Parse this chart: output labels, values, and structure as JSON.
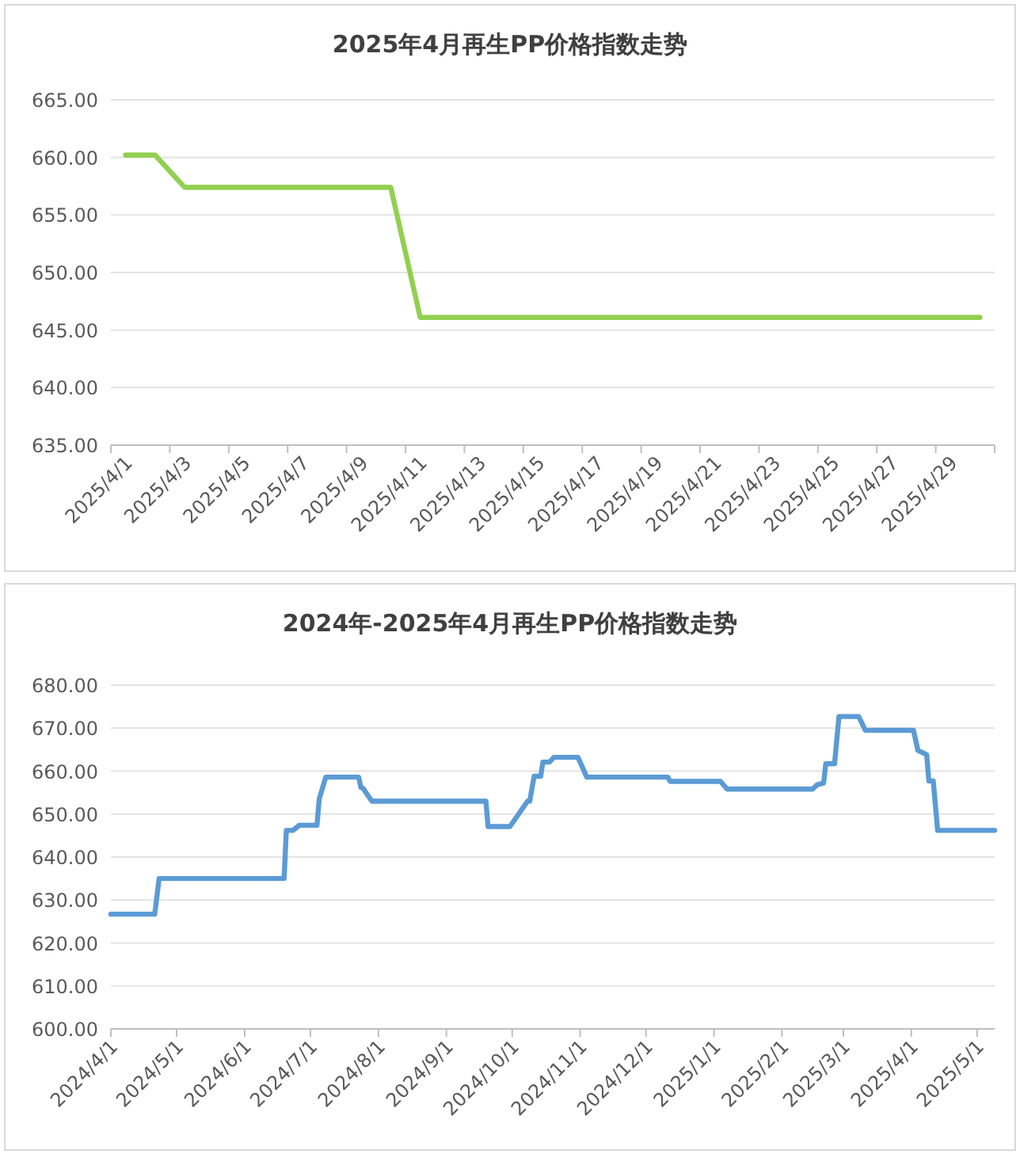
{
  "chart_data": [
    {
      "type": "line",
      "title": "2025年4月再生PP价格指数走势",
      "categories": [
        "2025/4/1",
        null,
        "2025/4/3",
        null,
        "2025/4/5",
        null,
        "2025/4/7",
        null,
        "2025/4/9",
        null,
        "2025/4/11",
        null,
        "2025/4/13",
        null,
        "2025/4/15",
        null,
        "2025/4/17",
        null,
        "2025/4/19",
        null,
        "2025/4/21",
        null,
        "2025/4/23",
        null,
        "2025/4/25",
        null,
        "2025/4/27",
        null,
        "2025/4/29",
        null
      ],
      "series": [
        {
          "color": "#92d050",
          "values": [
            660.2,
            660.2,
            657.4,
            657.4,
            657.4,
            657.4,
            657.4,
            657.4,
            657.4,
            657.4,
            646.1,
            646.1,
            646.1,
            646.1,
            646.1,
            646.1,
            646.1,
            646.1,
            646.1,
            646.1,
            646.1,
            646.1,
            646.1,
            646.1,
            646.1,
            646.1,
            646.1,
            646.1,
            646.1,
            646.1
          ]
        }
      ],
      "ylim": [
        635,
        665
      ],
      "yticks": [
        {
          "value": 635,
          "label": "635.00"
        },
        {
          "value": 640,
          "label": "640.00"
        },
        {
          "value": 645,
          "label": "645.00"
        },
        {
          "value": 650,
          "label": "650.00"
        },
        {
          "value": 655,
          "label": "655.00"
        },
        {
          "value": 660,
          "label": "660.00"
        },
        {
          "value": 665,
          "label": "665.00"
        }
      ],
      "grid": "y"
    },
    {
      "type": "line",
      "title": "2024年-2025年4月再生PP价格指数走势",
      "x": [
        "2024-04-01",
        "2024-04-21",
        "2024-04-23",
        "2024-06-19",
        "2024-06-20",
        "2024-06-23",
        "2024-06-26",
        "2024-07-04",
        "2024-07-05",
        "2024-07-08",
        "2024-07-23",
        "2024-07-24",
        "2024-07-25",
        "2024-07-29",
        "2024-09-19",
        "2024-09-20",
        "2024-09-30",
        "2024-10-08",
        "2024-10-09",
        "2024-10-11",
        "2024-10-14",
        "2024-10-15",
        "2024-10-18",
        "2024-10-20",
        "2024-10-31",
        "2024-11-04",
        "2024-12-11",
        "2024-12-12",
        "2025-01-04",
        "2025-01-07",
        "2025-02-15",
        "2025-02-17",
        "2025-02-20",
        "2025-02-21",
        "2025-02-25",
        "2025-02-27",
        "2025-03-08",
        "2025-03-11",
        "2025-04-02",
        "2025-04-04",
        "2025-04-08",
        "2025-04-09",
        "2025-04-11",
        "2025-04-13",
        "2025-05-09"
      ],
      "series": [
        {
          "color": "#5b9bd5",
          "values": [
            626.7,
            626.7,
            635.0,
            635.0,
            646.2,
            646.2,
            647.4,
            647.4,
            653.5,
            658.6,
            658.6,
            656.2,
            656.0,
            653.0,
            653.0,
            647.1,
            647.1,
            653.0,
            653.0,
            658.8,
            658.8,
            662.1,
            662.1,
            663.2,
            663.2,
            658.6,
            658.6,
            657.6,
            657.6,
            655.8,
            655.8,
            656.8,
            657.2,
            661.7,
            661.7,
            672.7,
            672.7,
            669.5,
            669.5,
            664.8,
            663.8,
            657.7,
            657.7,
            646.2,
            646.2
          ]
        }
      ],
      "xlim": [
        "2024-04-01",
        "2025-05-09"
      ],
      "xticks": [
        {
          "value": "2024-04-01",
          "label": "2024/4/1"
        },
        {
          "value": "2024-05-01",
          "label": "2024/5/1"
        },
        {
          "value": "2024-06-01",
          "label": "2024/6/1"
        },
        {
          "value": "2024-07-01",
          "label": "2024/7/1"
        },
        {
          "value": "2024-08-01",
          "label": "2024/8/1"
        },
        {
          "value": "2024-09-01",
          "label": "2024/9/1"
        },
        {
          "value": "2024-10-01",
          "label": "2024/10/1"
        },
        {
          "value": "2024-11-01",
          "label": "2024/11/1"
        },
        {
          "value": "2024-12-01",
          "label": "2024/12/1"
        },
        {
          "value": "2025-01-01",
          "label": "2025/1/1"
        },
        {
          "value": "2025-02-01",
          "label": "2025/2/1"
        },
        {
          "value": "2025-03-01",
          "label": "2025/3/1"
        },
        {
          "value": "2025-04-01",
          "label": "2025/4/1"
        },
        {
          "value": "2025-05-01",
          "label": "2025/5/1"
        }
      ],
      "ylim": [
        600,
        680
      ],
      "yticks": [
        {
          "value": 600,
          "label": "600.00"
        },
        {
          "value": 610,
          "label": "610.00"
        },
        {
          "value": 620,
          "label": "620.00"
        },
        {
          "value": 630,
          "label": "630.00"
        },
        {
          "value": 640,
          "label": "640.00"
        },
        {
          "value": 650,
          "label": "650.00"
        },
        {
          "value": 660,
          "label": "660.00"
        },
        {
          "value": 670,
          "label": "670.00"
        },
        {
          "value": 680,
          "label": "680.00"
        }
      ],
      "grid": "y"
    }
  ]
}
